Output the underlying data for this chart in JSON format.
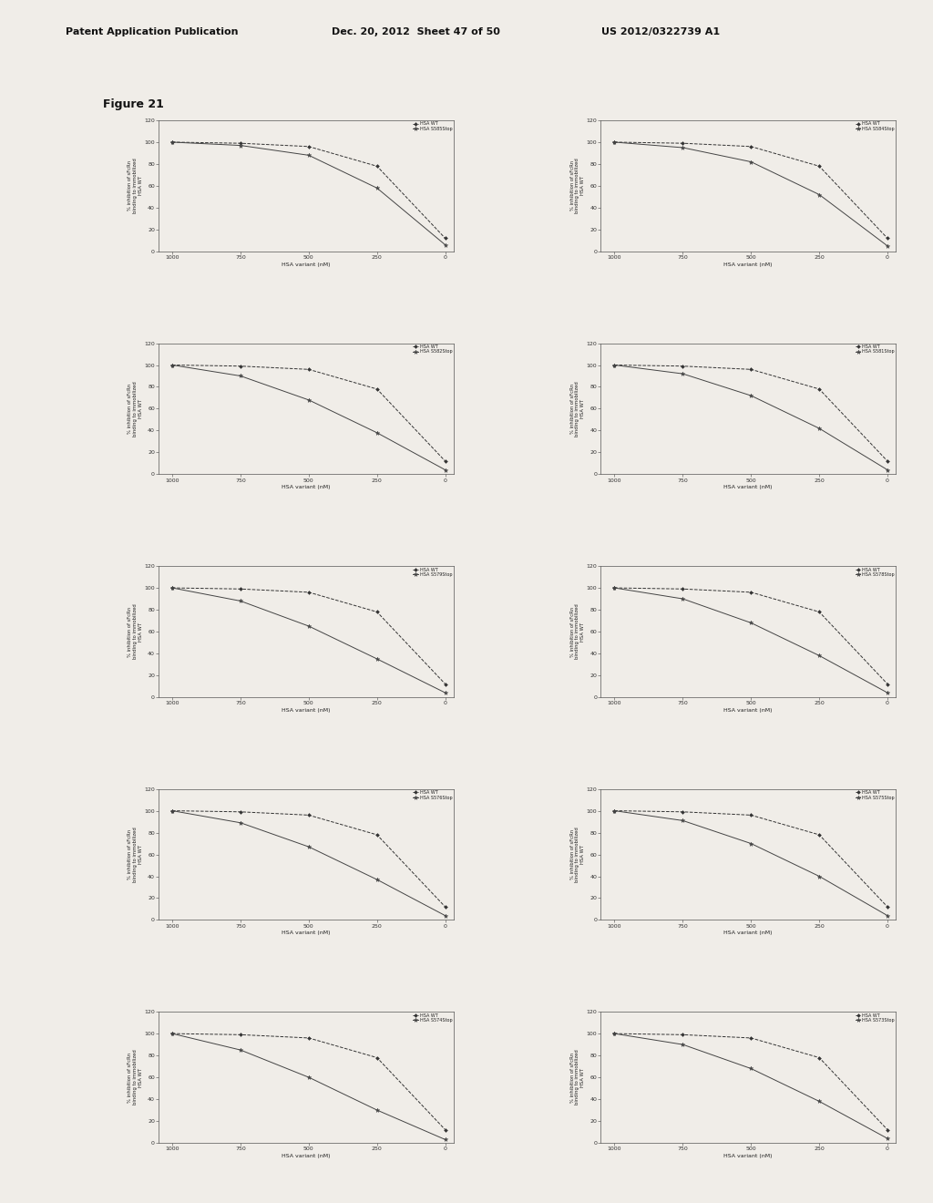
{
  "header_left": "Patent Application Publication",
  "header_mid": "Dec. 20, 2012  Sheet 47 of 50",
  "header_right": "US 2012/0322739 A1",
  "figure_label": "Figure 21",
  "subplot_variants": [
    "HSA S585Stop",
    "HSA S584Stop",
    "HSA S582Stop",
    "HSA S581Stop",
    "HSA S579Stop",
    "HSA S578Stop",
    "HSA S576Stop",
    "HSA S575Stop",
    "HSA S574Stop",
    "HSA S573Stop"
  ],
  "xlabel": "HSA variant (nM)",
  "ylabel": "% inhibition of sFcRn\nbinding to immobilized\nHSA WT",
  "ylim": [
    0,
    120
  ],
  "yticks": [
    0,
    20,
    40,
    60,
    80,
    100,
    120
  ],
  "xticks": [
    1000,
    750,
    500,
    250,
    0
  ],
  "xlim_left": 1050,
  "xlim_right": -30,
  "bg_color": "#f0ede8",
  "line_color_wt": "#333333",
  "line_color_var": "#444444",
  "x_vals": [
    1000,
    750,
    500,
    250,
    0
  ],
  "y_wt": [
    [
      100,
      99,
      96,
      78,
      12
    ],
    [
      100,
      99,
      96,
      78,
      12
    ],
    [
      100,
      99,
      96,
      78,
      12
    ],
    [
      100,
      99,
      96,
      78,
      12
    ],
    [
      100,
      99,
      96,
      78,
      12
    ],
    [
      100,
      99,
      96,
      78,
      12
    ],
    [
      100,
      99,
      96,
      78,
      12
    ],
    [
      100,
      99,
      96,
      78,
      12
    ],
    [
      100,
      99,
      96,
      78,
      12
    ],
    [
      100,
      99,
      96,
      78,
      12
    ]
  ],
  "y_var": [
    [
      100,
      97,
      88,
      58,
      6
    ],
    [
      100,
      95,
      82,
      52,
      5
    ],
    [
      100,
      90,
      68,
      38,
      4
    ],
    [
      100,
      92,
      72,
      42,
      4
    ],
    [
      100,
      88,
      65,
      35,
      4
    ],
    [
      100,
      90,
      68,
      38,
      4
    ],
    [
      100,
      89,
      67,
      37,
      4
    ],
    [
      100,
      91,
      70,
      40,
      4
    ],
    [
      100,
      85,
      60,
      30,
      3
    ],
    [
      100,
      90,
      68,
      38,
      4
    ]
  ],
  "nrows": 5,
  "ncols": 2
}
